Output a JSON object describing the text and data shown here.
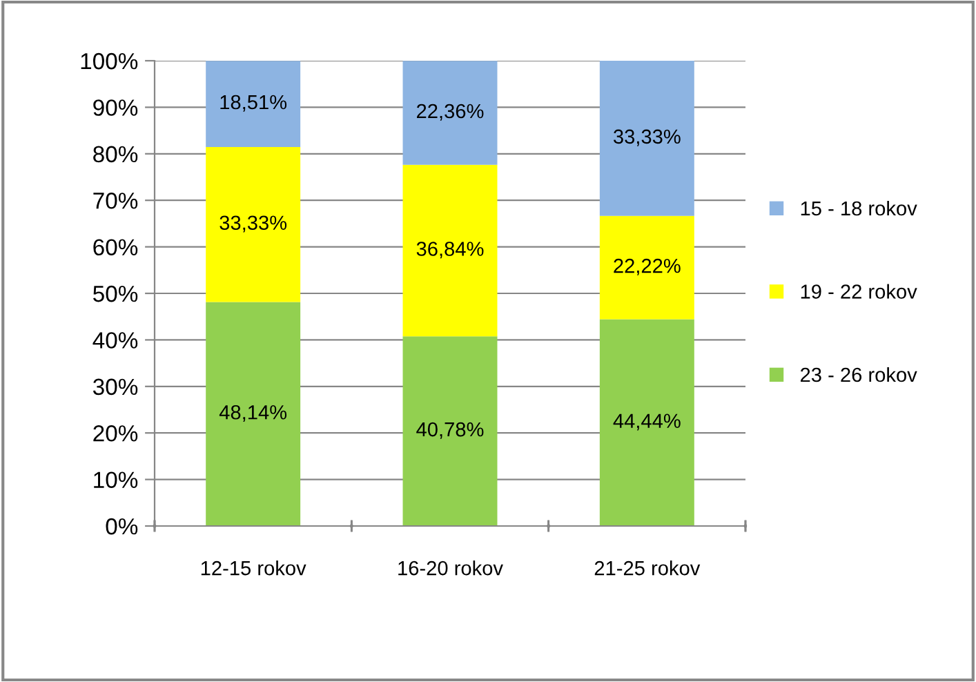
{
  "chart_data": {
    "type": "bar",
    "stacked": true,
    "categories": [
      "12-15 rokov",
      "16-20 rokov",
      "21-25 rokov"
    ],
    "series": [
      {
        "name": "23 - 26 rokov",
        "color": "#92d050",
        "values": [
          48.14,
          40.78,
          44.44
        ],
        "value_labels": [
          "48,14%",
          "40,78%",
          "44,44%"
        ]
      },
      {
        "name": "19 - 22 rokov",
        "color": "#ffff00",
        "values": [
          33.33,
          36.84,
          22.22
        ],
        "value_labels": [
          "33,33%",
          "36,84%",
          "22,22%"
        ]
      },
      {
        "name": "15 - 18 rokov",
        "color": "#8db4e2",
        "values": [
          18.51,
          22.36,
          33.33
        ],
        "value_labels": [
          "18,51%",
          "22,36%",
          "33,33%"
        ]
      }
    ],
    "ylim": [
      0,
      100
    ],
    "yticks": [
      {
        "value": 0,
        "label": "0%"
      },
      {
        "value": 10,
        "label": "10%"
      },
      {
        "value": 20,
        "label": "20%"
      },
      {
        "value": 30,
        "label": "30%"
      },
      {
        "value": 40,
        "label": "40%"
      },
      {
        "value": 50,
        "label": "50%"
      },
      {
        "value": 60,
        "label": "60%"
      },
      {
        "value": 70,
        "label": "70%"
      },
      {
        "value": 80,
        "label": "80%"
      },
      {
        "value": 90,
        "label": "90%"
      },
      {
        "value": 100,
        "label": "100%"
      }
    ],
    "grid": "y",
    "legend": "right"
  }
}
